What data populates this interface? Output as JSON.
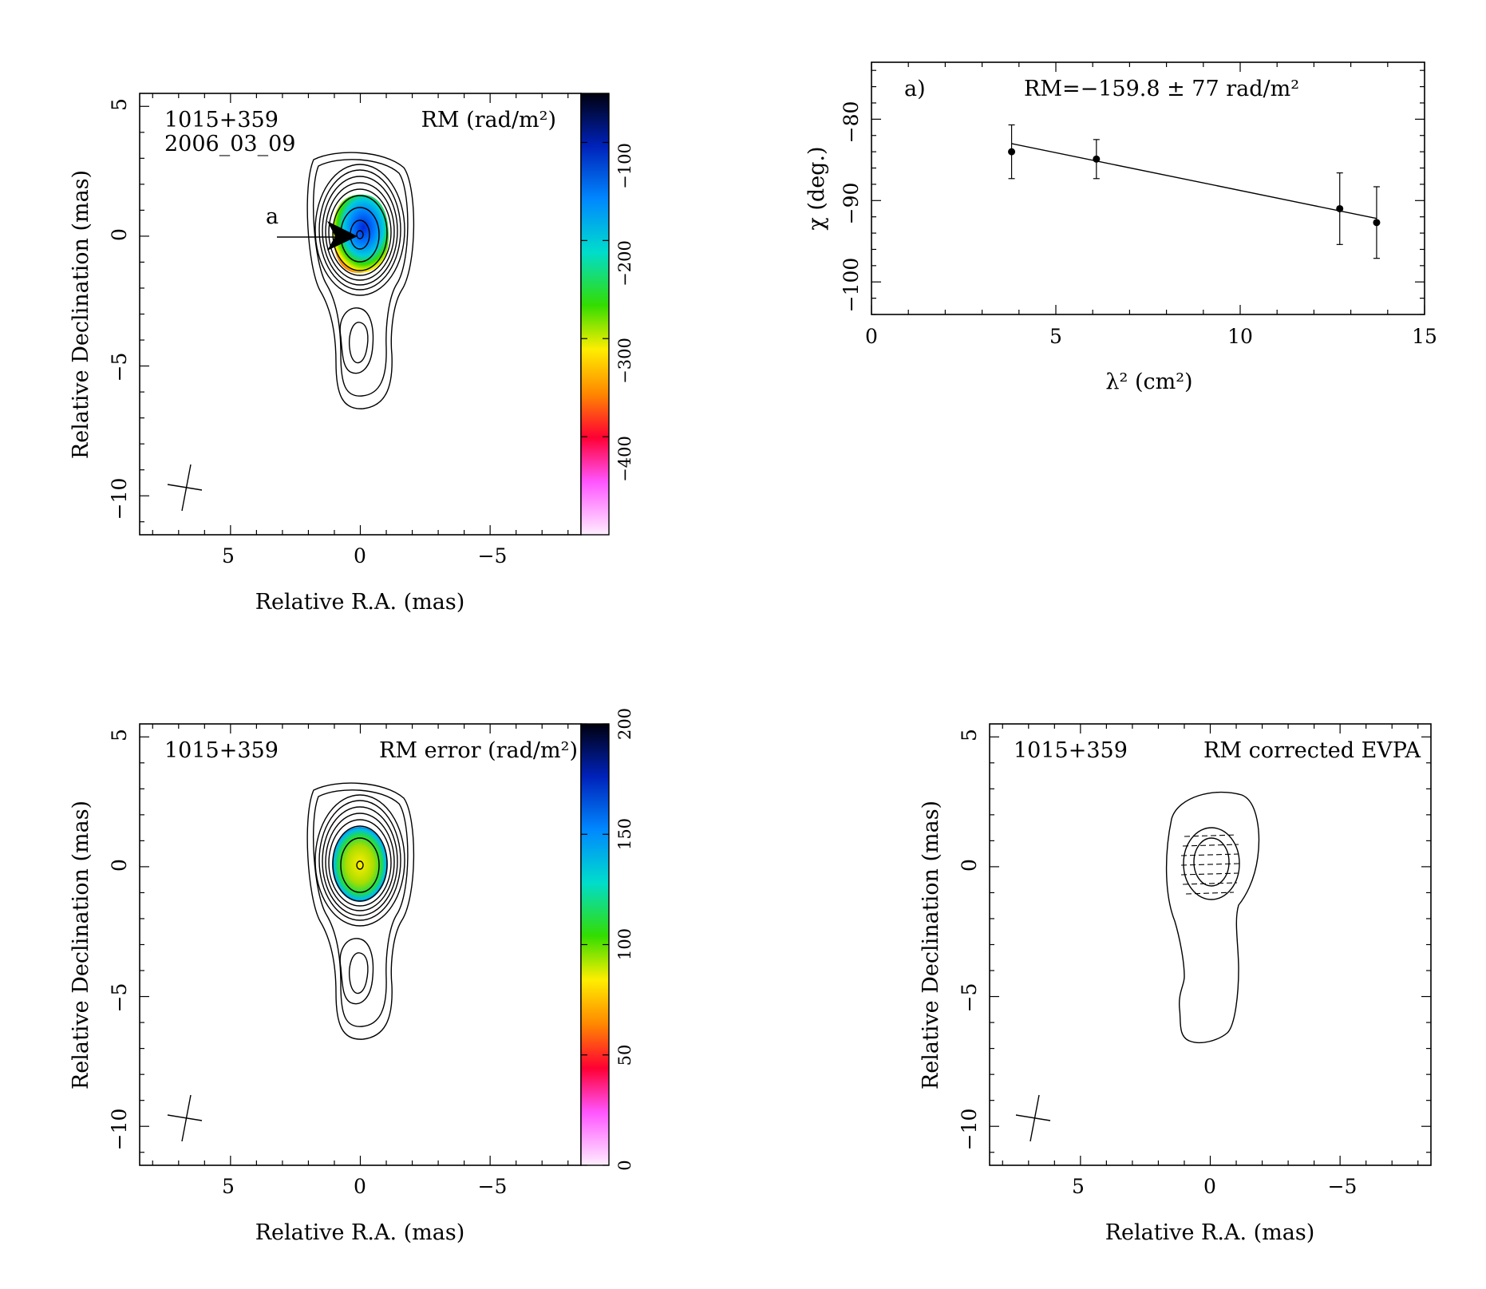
{
  "chart_data": [
    {
      "type": "heatmap",
      "panel": "rm-map",
      "source_label": "1015+359",
      "epoch_label": "2006_03_09",
      "map_label": "RM (rad/m²)",
      "xlabel": "Relative R.A. (mas)",
      "ylabel": "Relative Declination (mas)",
      "xlim": [
        8.5,
        -8.5
      ],
      "ylim": [
        -11.5,
        5.5
      ],
      "xticks": [
        5,
        0,
        -5
      ],
      "yticks": [
        5,
        0,
        -5,
        -10
      ],
      "xtick_labels": [
        "5",
        "0",
        "−5"
      ],
      "ytick_labels": [
        "5",
        "0",
        "−5",
        "−10"
      ],
      "colorbar": {
        "range": [
          -500,
          -50
        ],
        "ticks": [
          -100,
          -200,
          -300,
          -400
        ],
        "tick_labels": [
          "−100",
          "−200",
          "−300",
          "−400"
        ]
      },
      "marker": {
        "label": "a",
        "x": 0.6,
        "y": 0.0
      }
    },
    {
      "type": "scatter",
      "panel": "rm-fit",
      "annotation_label": "a)",
      "fit_label": "RM=−159.8 ± 77 rad/m²",
      "xlabel": "λ² (cm²)",
      "ylabel": "χ (deg.)",
      "xlim": [
        0,
        15
      ],
      "ylim": [
        -104,
        -73
      ],
      "xticks": [
        0,
        5,
        10,
        15
      ],
      "yticks": [
        -80,
        -90,
        -100
      ],
      "xtick_labels": [
        "0",
        "5",
        "10",
        "15"
      ],
      "ytick_labels": [
        "−80",
        "−90",
        "−100"
      ],
      "points": [
        {
          "x": 3.8,
          "y": -84.0,
          "err": 3.3
        },
        {
          "x": 6.1,
          "y": -84.9,
          "err": 2.4
        },
        {
          "x": 12.7,
          "y": -91.0,
          "err": 4.4
        },
        {
          "x": 13.7,
          "y": -92.7,
          "err": 4.4
        }
      ],
      "fit_line": {
        "x": [
          3.8,
          13.7
        ],
        "y": [
          -83.0,
          -92.2
        ]
      }
    },
    {
      "type": "heatmap",
      "panel": "rm-error-map",
      "source_label": "1015+359",
      "map_label": "RM error (rad/m²)",
      "xlabel": "Relative R.A. (mas)",
      "ylabel": "Relative Declination (mas)",
      "xlim": [
        8.5,
        -8.5
      ],
      "ylim": [
        -11.5,
        5.5
      ],
      "xticks": [
        5,
        0,
        -5
      ],
      "yticks": [
        5,
        0,
        -5,
        -10
      ],
      "xtick_labels": [
        "5",
        "0",
        "−5"
      ],
      "ytick_labels": [
        "5",
        "0",
        "−5",
        "−10"
      ],
      "colorbar": {
        "range": [
          0,
          200
        ],
        "ticks": [
          0,
          50,
          100,
          150,
          200
        ],
        "tick_labels": [
          "0",
          "50",
          "100",
          "150",
          "200"
        ]
      }
    },
    {
      "type": "heatmap",
      "panel": "evpa-map",
      "source_label": "1015+359",
      "map_label": "RM corrected EVPA",
      "xlabel": "Relative R.A. (mas)",
      "ylabel": "Relative Declination (mas)",
      "xlim": [
        8.5,
        -8.5
      ],
      "ylim": [
        -11.5,
        5.5
      ],
      "xticks": [
        5,
        0,
        -5
      ],
      "yticks": [
        5,
        0,
        -5,
        -10
      ],
      "xtick_labels": [
        "5",
        "0",
        "−5"
      ],
      "ytick_labels": [
        "5",
        "0",
        "−5",
        "−10"
      ]
    }
  ],
  "colors": {
    "axes": "#000000",
    "background": "#ffffff",
    "rm_colormap": [
      "#ffe8ff",
      "#ff66ff",
      "#ff0033",
      "#ff8800",
      "#ffdd00",
      "#44dd00",
      "#00ddcc",
      "#0088ff",
      "#0022cc",
      "#000010"
    ]
  }
}
